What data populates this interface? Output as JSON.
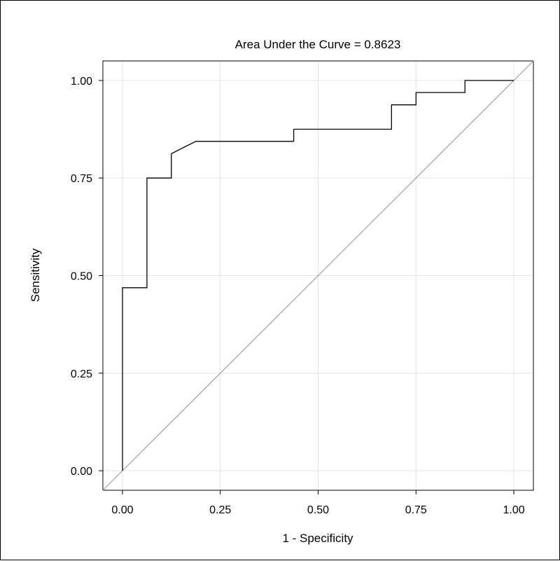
{
  "chart_data": {
    "type": "line",
    "title": "Area Under the Curve = 0.8623",
    "xlabel": "1 - Specificity",
    "ylabel": "Sensitivity",
    "xlim": [
      -0.05,
      1.05
    ],
    "ylim": [
      -0.05,
      1.05
    ],
    "x_ticks": [
      "0.00",
      "0.25",
      "0.50",
      "0.75",
      "1.00"
    ],
    "y_ticks": [
      "0.00",
      "0.25",
      "0.50",
      "0.75",
      "1.00"
    ],
    "grid": true,
    "series": [
      {
        "color": "#000000",
        "points": [
          [
            0.0,
            0.0
          ],
          [
            0.0,
            0.469
          ],
          [
            0.0625,
            0.469
          ],
          [
            0.0625,
            0.75
          ],
          [
            0.125,
            0.75
          ],
          [
            0.125,
            0.8125
          ],
          [
            0.1875,
            0.844
          ],
          [
            0.4375,
            0.844
          ],
          [
            0.4375,
            0.875
          ],
          [
            0.6875,
            0.875
          ],
          [
            0.6875,
            0.9375
          ],
          [
            0.75,
            0.9375
          ],
          [
            0.75,
            0.969
          ],
          [
            0.875,
            0.969
          ],
          [
            0.875,
            1.0
          ],
          [
            1.0,
            1.0
          ]
        ]
      },
      {
        "color": "#a0a0a0",
        "points": [
          [
            -0.05,
            -0.05
          ],
          [
            1.05,
            1.05
          ]
        ]
      }
    ]
  }
}
